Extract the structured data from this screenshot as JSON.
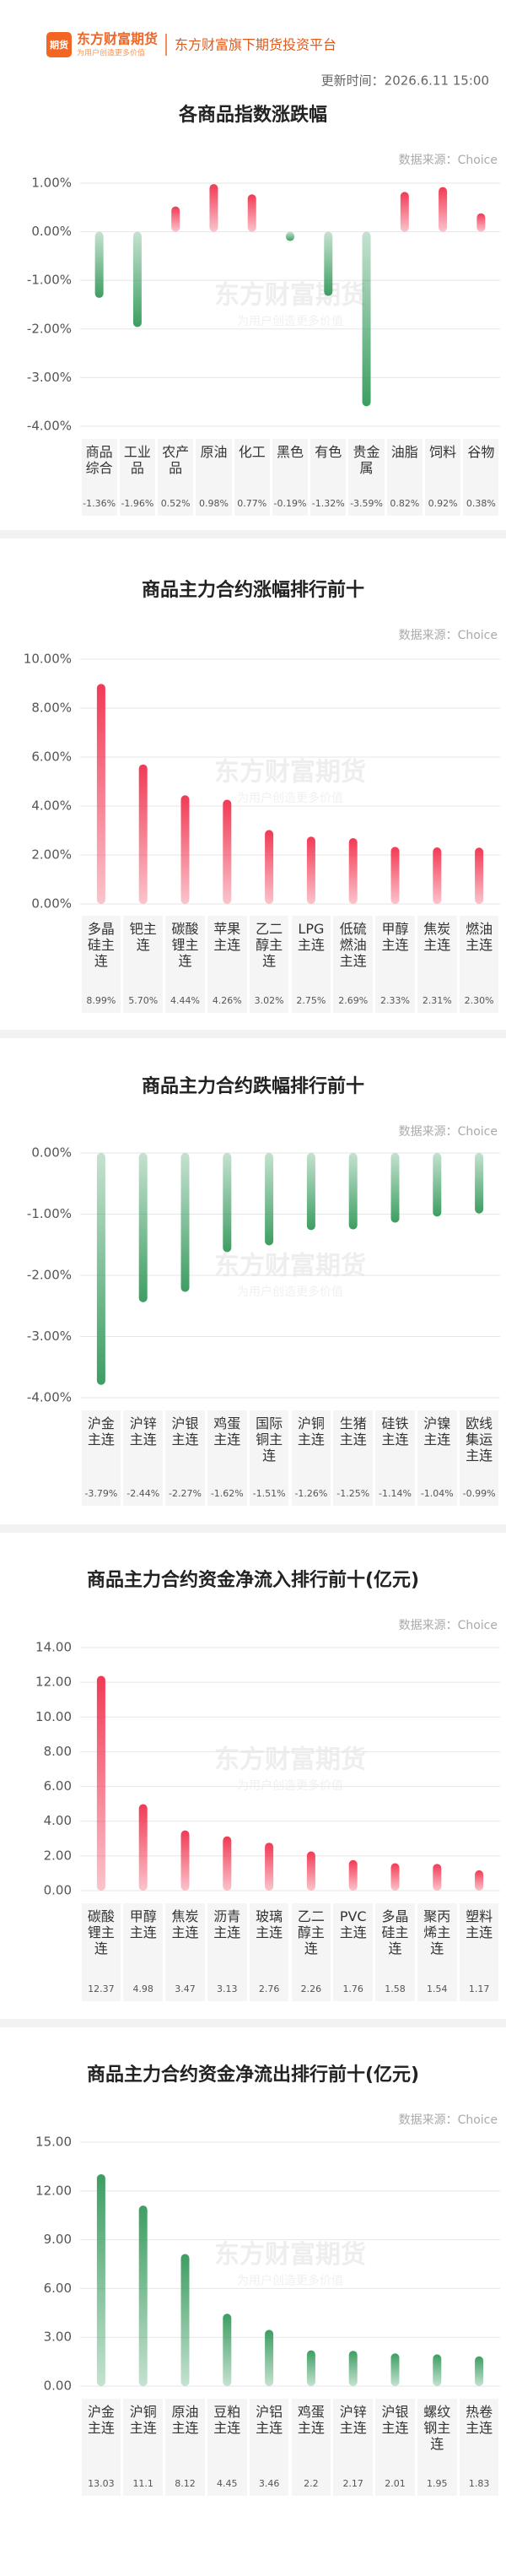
{
  "header": {
    "logo_icon": "期货",
    "brand": "东方财富期货",
    "slogan": "为用户创造更多价值",
    "platform": "东方财富旗下期货投资平台",
    "update_time": "更新时间：2026.6.11 15:00"
  },
  "chart_data": [
    {
      "type": "bar",
      "title": "各商品指数涨跌幅",
      "source": "数据来源：Choice",
      "categories": [
        "商品综合",
        "工业品",
        "农产品",
        "原油",
        "化工",
        "黑色",
        "有色",
        "贵金属",
        "油脂",
        "饲料",
        "谷物"
      ],
      "values": [
        -1.36,
        -1.96,
        0.52,
        0.98,
        0.77,
        -0.19,
        -1.32,
        -3.59,
        0.82,
        0.92,
        0.38
      ],
      "value_labels": [
        "-1.36%",
        "-1.96%",
        "0.52%",
        "0.98%",
        "0.77%",
        "-0.19%",
        "-1.32%",
        "-3.59%",
        "0.82%",
        "0.92%",
        "0.38%"
      ],
      "colors": {
        "positive": "#f23a55",
        "negative": "#3d9e62"
      },
      "ylim": [
        -4,
        1
      ],
      "yticks": [
        {
          "value": 1,
          "label": "1.00%"
        },
        {
          "value": 0,
          "label": "0.00%"
        },
        {
          "value": -1,
          "label": "-1.00%"
        },
        {
          "value": -2,
          "label": "-2.00%"
        },
        {
          "value": -3,
          "label": "-3.00%"
        },
        {
          "value": -4,
          "label": "-4.00%"
        }
      ],
      "grid": true
    },
    {
      "type": "bar",
      "title": "商品主力合约涨幅排行前十",
      "source": "数据来源：Choice",
      "categories": [
        "多晶硅主连",
        "钯主连",
        "碳酸锂主连",
        "苹果主连",
        "乙二醇主连",
        "LPG主连",
        "低硫燃油主连",
        "甲醇主连",
        "焦炭主连",
        "燃油主连"
      ],
      "values": [
        8.99,
        5.7,
        4.44,
        4.26,
        3.02,
        2.75,
        2.69,
        2.33,
        2.31,
        2.3
      ],
      "value_labels": [
        "8.99%",
        "5.70%",
        "4.44%",
        "4.26%",
        "3.02%",
        "2.75%",
        "2.69%",
        "2.33%",
        "2.31%",
        "2.30%"
      ],
      "color": "#f23a55",
      "ylim": [
        0,
        10
      ],
      "yticks": [
        {
          "value": 10,
          "label": "10.00%"
        },
        {
          "value": 8,
          "label": "8.00%"
        },
        {
          "value": 6,
          "label": "6.00%"
        },
        {
          "value": 4,
          "label": "4.00%"
        },
        {
          "value": 2,
          "label": "2.00%"
        },
        {
          "value": 0,
          "label": "0.00%"
        }
      ],
      "grid": true
    },
    {
      "type": "bar",
      "title": "商品主力合约跌幅排行前十",
      "source": "数据来源：Choice",
      "categories": [
        "沪金主连",
        "沪锌主连",
        "沪银主连",
        "鸡蛋主连",
        "国际铜主连",
        "沪铜主连",
        "生猪主连",
        "硅铁主连",
        "沪镍主连",
        "欧线集运主连"
      ],
      "values": [
        -3.79,
        -2.44,
        -2.27,
        -1.62,
        -1.51,
        -1.26,
        -1.25,
        -1.14,
        -1.04,
        -0.99
      ],
      "value_labels": [
        "-3.79%",
        "-2.44%",
        "-2.27%",
        "-1.62%",
        "-1.51%",
        "-1.26%",
        "-1.25%",
        "-1.14%",
        "-1.04%",
        "-0.99%"
      ],
      "color": "#3d9e62",
      "ylim": [
        -4,
        0
      ],
      "yticks": [
        {
          "value": 0,
          "label": "0.00%"
        },
        {
          "value": -1,
          "label": "-1.00%"
        },
        {
          "value": -2,
          "label": "-2.00%"
        },
        {
          "value": -3,
          "label": "-3.00%"
        },
        {
          "value": -4,
          "label": "-4.00%"
        }
      ],
      "grid": true
    },
    {
      "type": "bar",
      "title": "商品主力合约资金净流入排行前十(亿元)",
      "source": "数据来源：Choice",
      "categories": [
        "碳酸锂主连",
        "甲醇主连",
        "焦炭主连",
        "沥青主连",
        "玻璃主连",
        "乙二醇主连",
        "PVC主连",
        "多晶硅主连",
        "聚丙烯主连",
        "塑料主连"
      ],
      "values": [
        12.37,
        4.98,
        3.47,
        3.13,
        2.76,
        2.26,
        1.76,
        1.58,
        1.54,
        1.17
      ],
      "color": "#f23a55",
      "ylim": [
        0,
        14
      ],
      "yticks": [
        {
          "value": 14,
          "label": "14.00"
        },
        {
          "value": 12,
          "label": "12.00"
        },
        {
          "value": 10,
          "label": "10.00"
        },
        {
          "value": 8,
          "label": "8.00"
        },
        {
          "value": 6,
          "label": "6.00"
        },
        {
          "value": 4,
          "label": "4.00"
        },
        {
          "value": 2,
          "label": "2.00"
        },
        {
          "value": 0,
          "label": "0.00"
        }
      ],
      "grid": true
    },
    {
      "type": "bar",
      "title": "商品主力合约资金净流出排行前十(亿元)",
      "source": "数据来源：Choice",
      "categories": [
        "沪金主连",
        "沪铜主连",
        "原油主连",
        "豆粕主连",
        "沪铝主连",
        "鸡蛋主连",
        "沪锌主连",
        "沪银主连",
        "螺纹钢主连",
        "热卷主连"
      ],
      "values": [
        13.03,
        11.1,
        8.12,
        4.45,
        3.46,
        2.2,
        2.17,
        2.01,
        1.95,
        1.83
      ],
      "color": "#3d9e62",
      "ylim": [
        0,
        15
      ],
      "yticks": [
        {
          "value": 15,
          "label": "15.00"
        },
        {
          "value": 12,
          "label": "12.00"
        },
        {
          "value": 9,
          "label": "9.00"
        },
        {
          "value": 6,
          "label": "6.00"
        },
        {
          "value": 3,
          "label": "3.00"
        },
        {
          "value": 0,
          "label": "0.00"
        }
      ],
      "grid": true
    }
  ]
}
